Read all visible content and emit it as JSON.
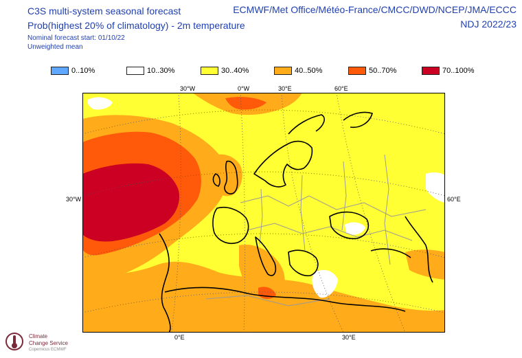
{
  "header": {
    "title": "C3S multi-system seasonal forecast",
    "subtitle": "Prob(highest 20% of climatology) - 2m temperature",
    "start": "Nominal forecast start: 01/10/22",
    "mean": "Unweighted mean",
    "systems": "ECMWF/Met Office/Météo-France/CMCC/DWD/NCEP/JMA/ECCC",
    "period": "NDJ 2022/23"
  },
  "legend": [
    {
      "label": "0..10%",
      "color": "#60a8ff"
    },
    {
      "label": "10..30%",
      "color": "#ffffff"
    },
    {
      "label": "30..40%",
      "color": "#ffff33"
    },
    {
      "label": "40..50%",
      "color": "#ffab1a"
    },
    {
      "label": "50..70%",
      "color": "#ff5a0a"
    },
    {
      "label": "70..100%",
      "color": "#cc0022"
    }
  ],
  "ticks": {
    "top": [
      "30°W",
      "0°W",
      "30°E",
      "60°E"
    ],
    "left": "30°W",
    "right": "60°E",
    "bottom": [
      "0°E",
      "30°E"
    ]
  },
  "logo": {
    "name_line1": "Climate",
    "name_line2": "Change Service",
    "sub": "Copernicus ECMWF"
  }
}
